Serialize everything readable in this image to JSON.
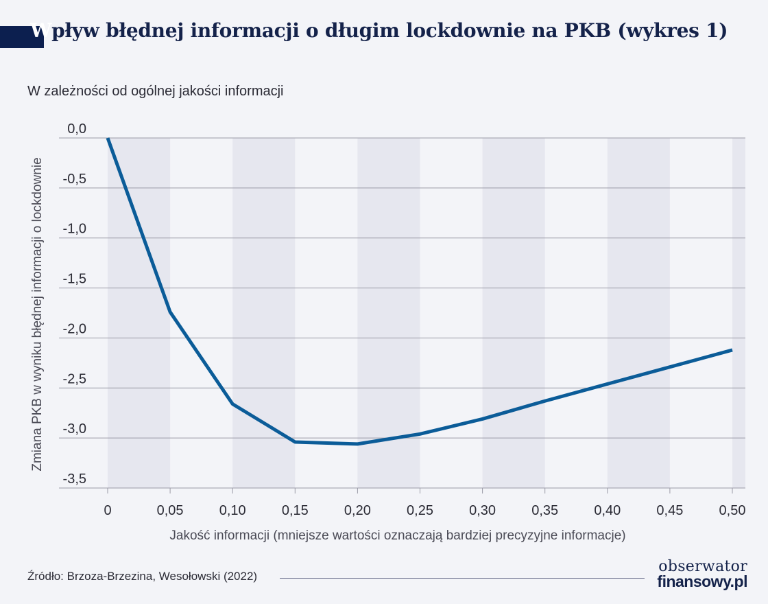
{
  "header": {
    "title_first": "W",
    "title_rest": "pływ błędnej informacji o długim lockdownie na PKB (wykres 1)",
    "subtitle": "W zależności od ogólnej jakości informacji"
  },
  "chart_data": {
    "type": "line",
    "xlabel": "Jakość informacji (mniejsze wartości oznaczają bardziej precyzyjne informacje)",
    "ylabel": "Zmiana PKB w wyniku błędnej informacji o lockdownie",
    "x": [
      0,
      0.05,
      0.1,
      0.15,
      0.2,
      0.25,
      0.3,
      0.35,
      0.4,
      0.45,
      0.5
    ],
    "x_tick_labels": [
      "0",
      "0,05",
      "0,10",
      "0,15",
      "0,20",
      "0,25",
      "0,30",
      "0,35",
      "0,40",
      "0,45",
      "0,50"
    ],
    "y_ticks": [
      0,
      -0.5,
      -1.0,
      -1.5,
      -2.0,
      -2.5,
      -3.0,
      -3.5
    ],
    "y_tick_labels": [
      "0,0",
      "-0,5",
      "-1,0",
      "-1,5",
      "-2,0",
      "-2,5",
      "-3,0",
      "-3,5"
    ],
    "xlim": [
      0,
      0.5
    ],
    "ylim": [
      -3.5,
      0
    ],
    "grid": "horizontal",
    "series": [
      {
        "values": [
          0,
          -1.74,
          -2.66,
          -3.04,
          -3.06,
          -2.96,
          -2.81,
          -2.63,
          -2.46,
          -2.29,
          -2.12
        ],
        "color": "#0b5c98"
      }
    ],
    "colors": {
      "line": "#0b5c98",
      "band": "#e6e7ef",
      "grid": "#9a9aa6",
      "text": "#2b2b35"
    }
  },
  "footer": {
    "source": "Źródło: Brzoza-Brzezina, Wesołowski (2022)",
    "logo_line1": "obserwator",
    "logo_line2": "finansowy.pl"
  }
}
